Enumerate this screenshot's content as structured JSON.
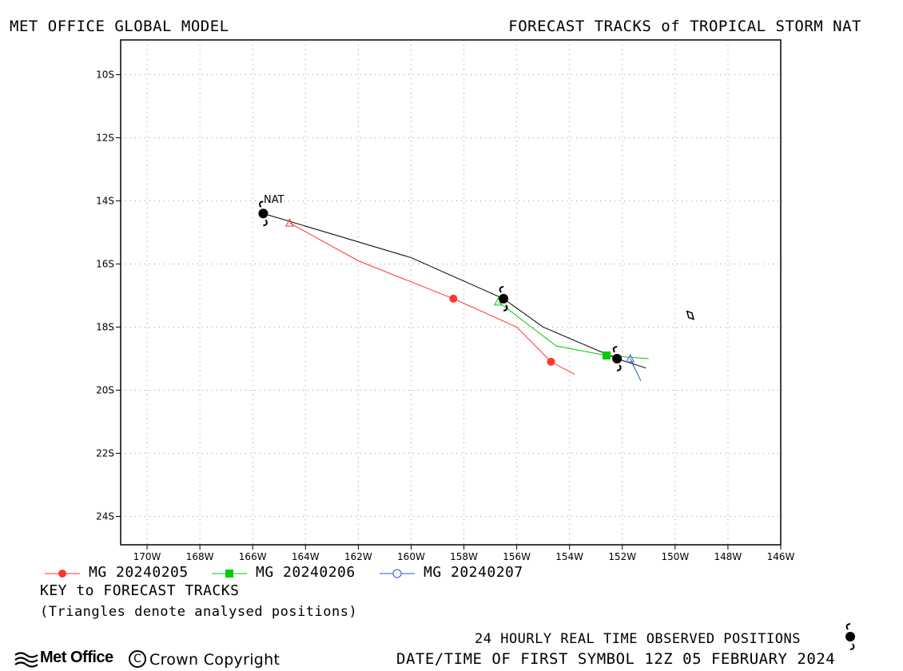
{
  "header": {
    "left_title": "MET OFFICE GLOBAL MODEL",
    "right_title": "FORECAST TRACKS of TROPICAL STORM NAT"
  },
  "map": {
    "lon_range": [
      -171,
      -146
    ],
    "lat_range": [
      -8.9,
      -24.9
    ],
    "lon_ticks": [
      {
        "value": -170,
        "label": "170W"
      },
      {
        "value": -168,
        "label": "168W"
      },
      {
        "value": -166,
        "label": "166W"
      },
      {
        "value": -164,
        "label": "164W"
      },
      {
        "value": -162,
        "label": "162W"
      },
      {
        "value": -160,
        "label": "160W"
      },
      {
        "value": -158,
        "label": "158W"
      },
      {
        "value": -156,
        "label": "156W"
      },
      {
        "value": -154,
        "label": "154W"
      },
      {
        "value": -152,
        "label": "152W"
      },
      {
        "value": -150,
        "label": "150W"
      },
      {
        "value": -148,
        "label": "148W"
      },
      {
        "value": -146,
        "label": "146W"
      }
    ],
    "lat_ticks": [
      {
        "value": -10,
        "label": "10S"
      },
      {
        "value": -12,
        "label": "12S"
      },
      {
        "value": -14,
        "label": "14S"
      },
      {
        "value": -16,
        "label": "16S"
      },
      {
        "value": -18,
        "label": "18S"
      },
      {
        "value": -20,
        "label": "20S"
      },
      {
        "value": -22,
        "label": "22S"
      },
      {
        "value": -24,
        "label": "24S"
      }
    ],
    "storm_label": "NAT",
    "grid": true
  },
  "chart_data": {
    "type": "map-track",
    "observed_track": {
      "name": "Observed",
      "color": "#000000",
      "points": [
        [
          -165.6,
          -14.4
        ],
        [
          -156.5,
          -17.1
        ],
        [
          -152.2,
          -19.0
        ]
      ],
      "line": [
        [
          -165.6,
          -14.4
        ],
        [
          -160.0,
          -15.8
        ],
        [
          -156.5,
          -17.1
        ],
        [
          -155.0,
          -18.0
        ],
        [
          -152.2,
          -19.0
        ],
        [
          -151.1,
          -19.3
        ]
      ]
    },
    "forecasts": [
      {
        "name": "MG 20240205",
        "color": "#ff3333",
        "marker": "circle-filled",
        "analysis_point": [
          -164.6,
          -14.7
        ],
        "track": [
          [
            -164.6,
            -14.7
          ],
          [
            -162.0,
            -15.9
          ],
          [
            -158.4,
            -17.1
          ],
          [
            -156.0,
            -18.0
          ],
          [
            -154.7,
            -19.1
          ],
          [
            -153.8,
            -19.5
          ]
        ],
        "symbols": [
          [
            -158.4,
            -17.1
          ],
          [
            -154.7,
            -19.1
          ]
        ]
      },
      {
        "name": "MG 20240206",
        "color": "#00cc00",
        "marker": "square-filled",
        "analysis_point": [
          -156.7,
          -17.2
        ],
        "track": [
          [
            -156.7,
            -17.2
          ],
          [
            -154.5,
            -18.6
          ],
          [
            -152.6,
            -18.9
          ],
          [
            -151.0,
            -19.0
          ]
        ],
        "symbols": [
          [
            -152.6,
            -18.9
          ]
        ]
      },
      {
        "name": "MG 20240207",
        "color": "#3355cc",
        "marker": "circle-open",
        "analysis_point": [
          -151.7,
          -19.0
        ],
        "track": [
          [
            -151.7,
            -19.0
          ],
          [
            -151.3,
            -19.7
          ]
        ],
        "symbols": []
      }
    ],
    "island": [
      [
        -149.55,
        -17.5
      ],
      [
        -149.3,
        -17.75
      ]
    ]
  },
  "legend": {
    "key_title": "KEY to FORECAST TRACKS",
    "note": "(Triangles denote analysed positions)"
  },
  "footer": {
    "observed_label": "24 HOURLY REAL TIME OBSERVED POSITIONS",
    "datetime": "DATE/TIME OF FIRST SYMBOL 12Z 05 FEBRUARY 2024",
    "copyright_symbol": "C",
    "copyright": "Crown Copyright",
    "logo_text": "Met Office"
  }
}
